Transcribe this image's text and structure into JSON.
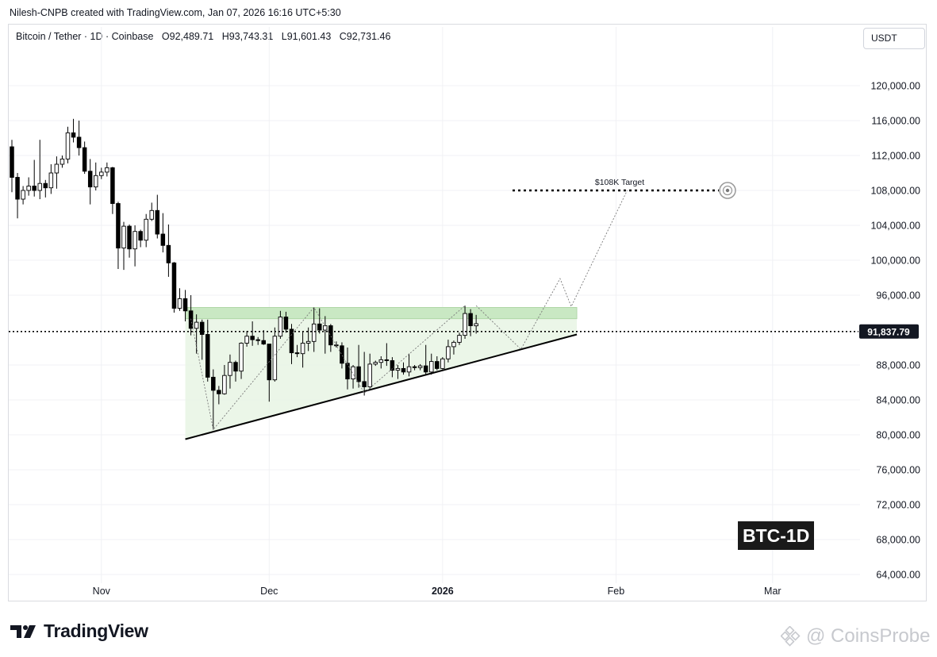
{
  "header": {
    "credit": "Nilesh-CNPB created with TradingView.com, Jan 07, 2026 16:16 UTC+5:30",
    "symbol": "Bitcoin / Tether · 1D · Coinbase",
    "open": "O92,489.71",
    "high": "H93,743.31",
    "low": "L91,601.43",
    "close": "C92,731.46",
    "currency": "USDT"
  },
  "footer": {
    "brand": "TradingView",
    "watermark": "@ CoinsProbe"
  },
  "badge": "BTC-1D",
  "colors": {
    "candle_fill": "#000000",
    "candle_hollow": "#ffffff",
    "triangle_fill": "#e8f5e4",
    "resistance_zone": "#c9e8c3",
    "trendline": "#000000"
  },
  "chart_data": {
    "type": "candlestick",
    "title": "",
    "xlabel": "",
    "ylabel": "",
    "ylim": [
      63000,
      124000
    ],
    "y_ticks": [
      "120,000.00",
      "116,000.00",
      "112,000.00",
      "108,000.00",
      "104,000.00",
      "100,000.00",
      "96,000.00",
      "88,000.00",
      "84,000.00",
      "80,000.00",
      "76,000.00",
      "72,000.00",
      "68,000.00",
      "64,000.00"
    ],
    "x_ticks": [
      {
        "label": "Nov",
        "date": "2025-11-01"
      },
      {
        "label": "Dec",
        "date": "2025-12-01"
      },
      {
        "label": "2026",
        "date": "2026-01-01",
        "bold": true
      },
      {
        "label": "Feb",
        "date": "2026-02-01"
      },
      {
        "label": "Mar",
        "date": "2026-03-01"
      }
    ],
    "x_range": [
      "2025-10-16",
      "2026-03-26"
    ],
    "current_price": "91,837.79",
    "target_label": "$108K Target",
    "target_value": 108000,
    "candles": [
      {
        "d": "2025-10-16",
        "o": 113000,
        "h": 113800,
        "l": 107800,
        "c": 109500
      },
      {
        "d": "2025-10-17",
        "o": 109500,
        "h": 110000,
        "l": 104800,
        "c": 107000
      },
      {
        "d": "2025-10-18",
        "o": 107000,
        "h": 108500,
        "l": 106400,
        "c": 108000
      },
      {
        "d": "2025-10-19",
        "o": 108000,
        "h": 109500,
        "l": 107400,
        "c": 108500
      },
      {
        "d": "2025-10-20",
        "o": 108500,
        "h": 111500,
        "l": 107300,
        "c": 108000
      },
      {
        "d": "2025-10-21",
        "o": 108000,
        "h": 113800,
        "l": 107000,
        "c": 108800
      },
      {
        "d": "2025-10-22",
        "o": 108800,
        "h": 109200,
        "l": 107200,
        "c": 108300
      },
      {
        "d": "2025-10-23",
        "o": 108300,
        "h": 111000,
        "l": 107600,
        "c": 110000
      },
      {
        "d": "2025-10-24",
        "o": 110000,
        "h": 111900,
        "l": 108200,
        "c": 111000
      },
      {
        "d": "2025-10-25",
        "o": 111000,
        "h": 112000,
        "l": 110600,
        "c": 111600
      },
      {
        "d": "2025-10-26",
        "o": 111600,
        "h": 115300,
        "l": 111100,
        "c": 114600
      },
      {
        "d": "2025-10-27",
        "o": 114600,
        "h": 116200,
        "l": 113500,
        "c": 114100
      },
      {
        "d": "2025-10-28",
        "o": 114100,
        "h": 116000,
        "l": 112000,
        "c": 112900
      },
      {
        "d": "2025-10-29",
        "o": 112900,
        "h": 113600,
        "l": 109900,
        "c": 110200
      },
      {
        "d": "2025-10-30",
        "o": 110200,
        "h": 111600,
        "l": 106400,
        "c": 108400
      },
      {
        "d": "2025-10-31",
        "o": 108400,
        "h": 111200,
        "l": 108000,
        "c": 109700
      },
      {
        "d": "2025-11-01",
        "o": 109700,
        "h": 110600,
        "l": 109300,
        "c": 110100
      },
      {
        "d": "2025-11-02",
        "o": 110100,
        "h": 111200,
        "l": 109600,
        "c": 110600
      },
      {
        "d": "2025-11-03",
        "o": 110600,
        "h": 110700,
        "l": 105300,
        "c": 106500
      },
      {
        "d": "2025-11-04",
        "o": 106500,
        "h": 106700,
        "l": 99000,
        "c": 101400
      },
      {
        "d": "2025-11-05",
        "o": 101400,
        "h": 104400,
        "l": 98900,
        "c": 103900
      },
      {
        "d": "2025-11-06",
        "o": 103900,
        "h": 104100,
        "l": 100300,
        "c": 101300
      },
      {
        "d": "2025-11-07",
        "o": 101300,
        "h": 104000,
        "l": 99300,
        "c": 103300
      },
      {
        "d": "2025-11-08",
        "o": 103300,
        "h": 103500,
        "l": 101500,
        "c": 102300
      },
      {
        "d": "2025-11-09",
        "o": 102300,
        "h": 105300,
        "l": 101500,
        "c": 104700
      },
      {
        "d": "2025-11-10",
        "o": 104700,
        "h": 106600,
        "l": 104500,
        "c": 105700
      },
      {
        "d": "2025-11-11",
        "o": 105700,
        "h": 107500,
        "l": 102500,
        "c": 103000
      },
      {
        "d": "2025-11-12",
        "o": 103000,
        "h": 105400,
        "l": 100900,
        "c": 101700
      },
      {
        "d": "2025-11-13",
        "o": 101700,
        "h": 104100,
        "l": 98100,
        "c": 99700
      },
      {
        "d": "2025-11-14",
        "o": 99700,
        "h": 99800,
        "l": 94000,
        "c": 94500
      },
      {
        "d": "2025-11-15",
        "o": 94500,
        "h": 96800,
        "l": 94200,
        "c": 95600
      },
      {
        "d": "2025-11-16",
        "o": 95600,
        "h": 96600,
        "l": 93000,
        "c": 94200
      },
      {
        "d": "2025-11-17",
        "o": 94200,
        "h": 96000,
        "l": 91400,
        "c": 92200
      },
      {
        "d": "2025-11-18",
        "o": 92200,
        "h": 93800,
        "l": 89300,
        "c": 92900
      },
      {
        "d": "2025-11-19",
        "o": 92900,
        "h": 93200,
        "l": 88600,
        "c": 91500
      },
      {
        "d": "2025-11-20",
        "o": 91500,
        "h": 93200,
        "l": 86100,
        "c": 86600
      },
      {
        "d": "2025-11-21",
        "o": 86600,
        "h": 87500,
        "l": 80600,
        "c": 85100
      },
      {
        "d": "2025-11-22",
        "o": 85100,
        "h": 85600,
        "l": 83500,
        "c": 84700
      },
      {
        "d": "2025-11-23",
        "o": 84700,
        "h": 88000,
        "l": 84600,
        "c": 86800
      },
      {
        "d": "2025-11-24",
        "o": 86800,
        "h": 89200,
        "l": 85300,
        "c": 88300
      },
      {
        "d": "2025-11-25",
        "o": 88300,
        "h": 88500,
        "l": 86100,
        "c": 87300
      },
      {
        "d": "2025-11-26",
        "o": 87300,
        "h": 90600,
        "l": 86400,
        "c": 90500
      },
      {
        "d": "2025-11-27",
        "o": 90500,
        "h": 91900,
        "l": 90100,
        "c": 91300
      },
      {
        "d": "2025-11-28",
        "o": 91300,
        "h": 93000,
        "l": 90200,
        "c": 90900
      },
      {
        "d": "2025-11-29",
        "o": 90900,
        "h": 91200,
        "l": 90300,
        "c": 90800
      },
      {
        "d": "2025-11-30",
        "o": 90800,
        "h": 92000,
        "l": 90300,
        "c": 90400
      },
      {
        "d": "2025-12-01",
        "o": 90400,
        "h": 90400,
        "l": 83800,
        "c": 86300
      },
      {
        "d": "2025-12-02",
        "o": 86300,
        "h": 92300,
        "l": 86100,
        "c": 91300
      },
      {
        "d": "2025-12-03",
        "o": 91300,
        "h": 94200,
        "l": 91000,
        "c": 93500
      },
      {
        "d": "2025-12-04",
        "o": 93500,
        "h": 94100,
        "l": 91700,
        "c": 92100
      },
      {
        "d": "2025-12-05",
        "o": 92100,
        "h": 92700,
        "l": 88100,
        "c": 89400
      },
      {
        "d": "2025-12-06",
        "o": 89400,
        "h": 90300,
        "l": 88900,
        "c": 89300
      },
      {
        "d": "2025-12-07",
        "o": 89300,
        "h": 91800,
        "l": 87700,
        "c": 90500
      },
      {
        "d": "2025-12-08",
        "o": 90500,
        "h": 92300,
        "l": 89600,
        "c": 90700
      },
      {
        "d": "2025-12-09",
        "o": 90700,
        "h": 94600,
        "l": 89500,
        "c": 92700
      },
      {
        "d": "2025-12-10",
        "o": 92700,
        "h": 94500,
        "l": 91600,
        "c": 92000
      },
      {
        "d": "2025-12-11",
        "o": 92000,
        "h": 93600,
        "l": 89300,
        "c": 92500
      },
      {
        "d": "2025-12-12",
        "o": 92500,
        "h": 92700,
        "l": 89500,
        "c": 90300
      },
      {
        "d": "2025-12-13",
        "o": 90300,
        "h": 90700,
        "l": 90000,
        "c": 90200
      },
      {
        "d": "2025-12-14",
        "o": 90200,
        "h": 90600,
        "l": 87600,
        "c": 88200
      },
      {
        "d": "2025-12-15",
        "o": 88200,
        "h": 90000,
        "l": 85200,
        "c": 86400
      },
      {
        "d": "2025-12-16",
        "o": 86400,
        "h": 88000,
        "l": 85300,
        "c": 87800
      },
      {
        "d": "2025-12-17",
        "o": 87800,
        "h": 90300,
        "l": 85400,
        "c": 86100
      },
      {
        "d": "2025-12-18",
        "o": 86100,
        "h": 89500,
        "l": 84500,
        "c": 85500
      },
      {
        "d": "2025-12-19",
        "o": 85500,
        "h": 89300,
        "l": 85200,
        "c": 88100
      },
      {
        "d": "2025-12-20",
        "o": 88100,
        "h": 88500,
        "l": 87900,
        "c": 88300
      },
      {
        "d": "2025-12-21",
        "o": 88300,
        "h": 89000,
        "l": 87600,
        "c": 88600
      },
      {
        "d": "2025-12-22",
        "o": 88600,
        "h": 90500,
        "l": 87900,
        "c": 88500
      },
      {
        "d": "2025-12-23",
        "o": 88500,
        "h": 88900,
        "l": 86600,
        "c": 87400
      },
      {
        "d": "2025-12-24",
        "o": 87400,
        "h": 88000,
        "l": 86400,
        "c": 87600
      },
      {
        "d": "2025-12-25",
        "o": 87600,
        "h": 88300,
        "l": 86900,
        "c": 87200
      },
      {
        "d": "2025-12-26",
        "o": 87200,
        "h": 89300,
        "l": 86700,
        "c": 87800
      },
      {
        "d": "2025-12-27",
        "o": 87800,
        "h": 88000,
        "l": 87400,
        "c": 87700
      },
      {
        "d": "2025-12-28",
        "o": 87700,
        "h": 88100,
        "l": 87400,
        "c": 87900
      },
      {
        "d": "2025-12-29",
        "o": 87900,
        "h": 90300,
        "l": 86800,
        "c": 87200
      },
      {
        "d": "2025-12-30",
        "o": 87200,
        "h": 89300,
        "l": 86900,
        "c": 88400
      },
      {
        "d": "2025-12-31",
        "o": 88400,
        "h": 89000,
        "l": 87400,
        "c": 87600
      },
      {
        "d": "2026-01-01",
        "o": 87600,
        "h": 88900,
        "l": 87500,
        "c": 88700
      },
      {
        "d": "2026-01-02",
        "o": 88700,
        "h": 90900,
        "l": 88300,
        "c": 90100
      },
      {
        "d": "2026-01-03",
        "o": 90100,
        "h": 90800,
        "l": 89200,
        "c": 90600
      },
      {
        "d": "2026-01-04",
        "o": 90600,
        "h": 91700,
        "l": 90300,
        "c": 91400
      },
      {
        "d": "2026-01-05",
        "o": 91400,
        "h": 94800,
        "l": 91000,
        "c": 93900
      },
      {
        "d": "2026-01-06",
        "o": 93900,
        "h": 94400,
        "l": 91300,
        "c": 92500
      },
      {
        "d": "2026-01-07",
        "o": 92489.71,
        "h": 93743.31,
        "l": 91601.43,
        "c": 92731.46
      }
    ],
    "annotations": {
      "ascending_trendline": [
        {
          "d": "2025-11-16",
          "v": 79500
        },
        {
          "d": "2026-01-25",
          "v": 91500
        }
      ],
      "resistance_zone": {
        "from": "2025-11-16",
        "to": "2026-01-25",
        "low": 93300,
        "high": 94600
      },
      "current_price_line": 91837.79,
      "projected_path": [
        {
          "d": "2026-01-07",
          "v": 94800
        },
        {
          "d": "2026-01-15",
          "v": 89800
        },
        {
          "d": "2026-01-22",
          "v": 97900
        },
        {
          "d": "2026-01-24",
          "v": 94700
        },
        {
          "d": "2026-02-03",
          "v": 108000
        }
      ],
      "wave_path": [
        {
          "d": "2025-11-17",
          "v": 93300
        },
        {
          "d": "2025-11-21",
          "v": 80600
        },
        {
          "d": "2025-12-09",
          "v": 94600
        },
        {
          "d": "2025-12-18",
          "v": 84800
        },
        {
          "d": "2026-01-05",
          "v": 94800
        }
      ]
    }
  }
}
